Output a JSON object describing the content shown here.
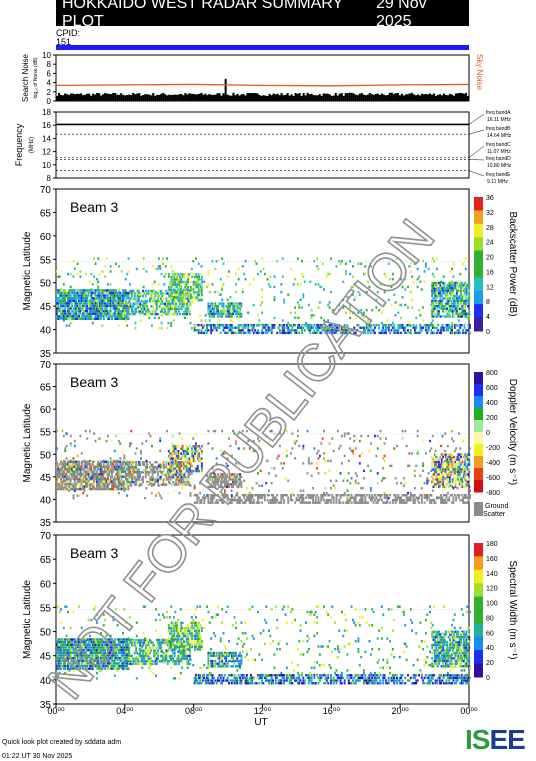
{
  "header": {
    "title": "HOKKAIDO WEST RADAR SUMMARY PLOT",
    "date": "29 Nov 2025"
  },
  "cpid": {
    "label": "CPID:",
    "value": "151"
  },
  "colors": {
    "cpid_bar": "#1a1aff",
    "sky_noise": "#e05a1e",
    "search_noise": "#000000",
    "ground_scatter": "#8c8c8c"
  },
  "noise_panel": {
    "ylabel": "Search Noise",
    "ylabel2": "log₁₀ of Noise (dB)",
    "right_label": "Sky Noise",
    "yticks": [
      "10",
      "8",
      "6",
      "4",
      "2",
      "0"
    ],
    "ylim": [
      0,
      10
    ]
  },
  "freq_panel": {
    "ylabel": "Frequency",
    "unit": "(MHz)",
    "yticks": [
      "18",
      "16",
      "14",
      "12",
      "10",
      "8"
    ],
    "ylim": [
      8,
      18
    ],
    "bands": [
      {
        "label": "freq bandA",
        "value": "16.11 MHz",
        "mhz": 16.11
      },
      {
        "label": "freq bandB",
        "value": "14.64 MHz",
        "mhz": 14.64
      },
      {
        "label": "freq bandC",
        "value": "11.07 MHz",
        "mhz": 11.07
      },
      {
        "label": "freq bandD",
        "value": "10.80 MHz",
        "mhz": 10.8
      },
      {
        "label": "freq bandE",
        "value": "9.11 MHz",
        "mhz": 9.11
      }
    ]
  },
  "beam_panels": [
    {
      "beam": "Beam  3",
      "ylabel": "Magnetic Latitude",
      "cbar_label": "Backscatter Power (dB)",
      "cbar_ticks": [
        "36",
        "32",
        "28",
        "24",
        "20",
        "16",
        "12",
        "8",
        "4",
        "0"
      ]
    },
    {
      "beam": "Beam  3",
      "ylabel": "Magnetic Latitude",
      "cbar_label": "Doppler Velocity (m s⁻¹)",
      "cbar_ticks": [
        "800",
        "600",
        "400",
        "200",
        "0",
        "-200",
        "-400",
        "-600",
        "-800"
      ],
      "gs_label1": "Ground",
      "gs_label2": "Scatter"
    },
    {
      "beam": "Beam  3",
      "ylabel": "Magnetic Latitude",
      "cbar_label": "Spectral Width (m s⁻¹)",
      "cbar_ticks": [
        "180",
        "160",
        "140",
        "120",
        "100",
        "80",
        "60",
        "40",
        "20",
        "0"
      ]
    }
  ],
  "lat_ticks": [
    "70",
    "65",
    "60",
    "55",
    "50",
    "45",
    "40",
    "35"
  ],
  "x_axis": {
    "label": "UT",
    "ticks": [
      "00⁰⁰",
      "04⁰⁰",
      "08⁰⁰",
      "12⁰⁰",
      "16⁰⁰",
      "20⁰⁰",
      "00⁰⁰"
    ]
  },
  "watermark": "NOT FOR PUBLICATION",
  "footer": {
    "line1": "Quick look plot created by sddata adm",
    "line2": "01:22 UT 30 Nov 2025"
  },
  "logo": {
    "part1": "IS",
    "part2": "EE"
  },
  "chart_data": [
    {
      "type": "line",
      "title": "Search Noise / Sky Noise",
      "xlim": [
        0,
        24
      ],
      "ylim": [
        0,
        10
      ],
      "series": [
        {
          "name": "Sky Noise",
          "x": [
            0,
            4,
            8,
            12,
            16,
            20,
            24
          ],
          "values": [
            3.4,
            3.5,
            3.6,
            3.4,
            3.3,
            3.5,
            3.6
          ]
        },
        {
          "name": "Search Noise",
          "x": [
            0,
            4,
            8,
            12,
            16,
            20,
            24
          ],
          "values": [
            1.4,
            1.3,
            1.5,
            1.4,
            1.4,
            1.3,
            1.5
          ]
        }
      ]
    },
    {
      "type": "line",
      "title": "Frequency",
      "xlim": [
        0,
        24
      ],
      "ylim": [
        8,
        18
      ],
      "series": [
        {
          "name": "freq bandA",
          "x": [
            0,
            24
          ],
          "values": [
            16.11,
            16.11
          ]
        }
      ]
    },
    {
      "type": "heatmap",
      "variable": "Backscatter Power",
      "xlim": [
        0,
        24
      ],
      "ylim": [
        35,
        70
      ],
      "clim": [
        0,
        36
      ]
    },
    {
      "type": "heatmap",
      "variable": "Doppler Velocity",
      "xlim": [
        0,
        24
      ],
      "ylim": [
        35,
        70
      ],
      "clim": [
        -800,
        800
      ]
    },
    {
      "type": "heatmap",
      "variable": "Spectral Width",
      "xlim": [
        0,
        24
      ],
      "ylim": [
        35,
        70
      ],
      "clim": [
        0,
        180
      ]
    }
  ]
}
